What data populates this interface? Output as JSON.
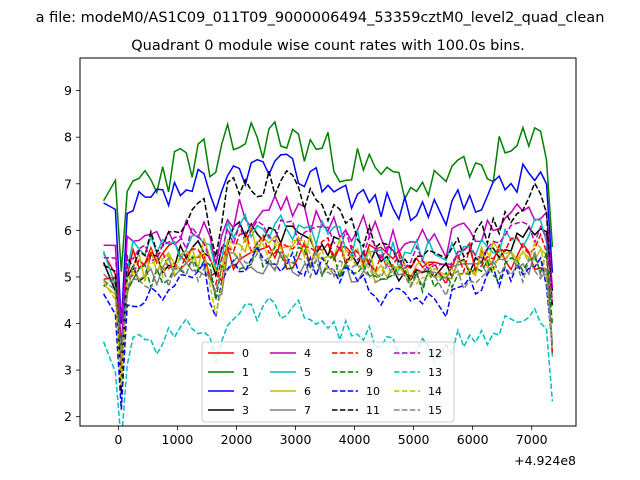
{
  "chart_data": {
    "type": "line",
    "suptitle": "a file: modeM0/AS1C09_011T09_9000006494_53359cztM0_level2_quad_clean",
    "title": "Quadrant 0 module wise count rates with 100.0s bins.",
    "xlabel": "",
    "ylabel": "",
    "x_offset_label": "+4.924e8",
    "xlim": [
      -650,
      7750
    ],
    "ylim": [
      1.8,
      9.7
    ],
    "xticks": [
      0,
      1000,
      2000,
      3000,
      4000,
      5000,
      6000,
      7000
    ],
    "xtick_labels": [
      "0",
      "1000",
      "2000",
      "3000",
      "4000",
      "5000",
      "6000",
      "7000"
    ],
    "yticks": [
      2,
      3,
      4,
      5,
      6,
      7,
      8,
      9
    ],
    "ytick_labels": [
      "2",
      "3",
      "4",
      "5",
      "6",
      "7",
      "8",
      "9"
    ],
    "grid": false,
    "legend": {
      "location": "lower center",
      "columns": 4
    },
    "x": {
      "start": -250,
      "step": 100,
      "count": 77,
      "gaps": [
        0,
        1,
        57
      ]
    },
    "series": [
      {
        "name": "0",
        "color": "#ff0000",
        "dash": "solid",
        "mean": 5.45,
        "amp": 0.05,
        "noise": 0.35,
        "seed": 11
      },
      {
        "name": "1",
        "color": "#008000",
        "dash": "solid",
        "mean": 7.5,
        "amp": 0.5,
        "noise": 0.5,
        "seed": 23
      },
      {
        "name": "2",
        "color": "#0000ff",
        "dash": "solid",
        "mean": 6.9,
        "amp": 0.45,
        "noise": 0.35,
        "seed": 37
      },
      {
        "name": "3",
        "color": "#000000",
        "dash": "solid",
        "mean": 5.55,
        "amp": 0.45,
        "noise": 0.3,
        "seed": 41
      },
      {
        "name": "4",
        "color": "#bf00bf",
        "dash": "solid",
        "mean": 6.1,
        "amp": 0.3,
        "noise": 0.35,
        "seed": 53
      },
      {
        "name": "5",
        "color": "#00bfbf",
        "dash": "solid",
        "mean": 5.75,
        "amp": 0.3,
        "noise": 0.35,
        "seed": 61
      },
      {
        "name": "6",
        "color": "#bfbf00",
        "dash": "solid",
        "mean": 5.45,
        "amp": 0.3,
        "noise": 0.35,
        "seed": 71
      },
      {
        "name": "7",
        "color": "#808080",
        "dash": "solid",
        "mean": 5.2,
        "amp": 0.15,
        "noise": 0.3,
        "seed": 83
      },
      {
        "name": "8",
        "color": "#ff0000",
        "dash": "dashed",
        "mean": 5.5,
        "amp": 0.3,
        "noise": 0.3,
        "seed": 97
      },
      {
        "name": "9",
        "color": "#008000",
        "dash": "dashed",
        "mean": 5.2,
        "amp": 0.25,
        "noise": 0.3,
        "seed": 101
      },
      {
        "name": "10",
        "color": "#0000ff",
        "dash": "dashed",
        "mean": 4.95,
        "amp": 0.45,
        "noise": 0.3,
        "seed": 113
      },
      {
        "name": "11",
        "color": "#000000",
        "dash": "dashed",
        "mean": 6.2,
        "amp": 0.8,
        "noise": 0.35,
        "seed": 127
      },
      {
        "name": "12",
        "color": "#bf00bf",
        "dash": "dashed",
        "mean": 5.75,
        "amp": 0.3,
        "noise": 0.3,
        "seed": 131
      },
      {
        "name": "13",
        "color": "#00bfbf",
        "dash": "dashed",
        "mean": 3.9,
        "amp": 0.45,
        "noise": 0.3,
        "seed": 139
      },
      {
        "name": "14",
        "color": "#bfbf00",
        "dash": "dashed",
        "mean": 5.35,
        "amp": 0.25,
        "noise": 0.3,
        "seed": 149
      },
      {
        "name": "15",
        "color": "#808080",
        "dash": "dashed",
        "mean": 5.1,
        "amp": 0.15,
        "noise": 0.3,
        "seed": 157
      }
    ]
  }
}
